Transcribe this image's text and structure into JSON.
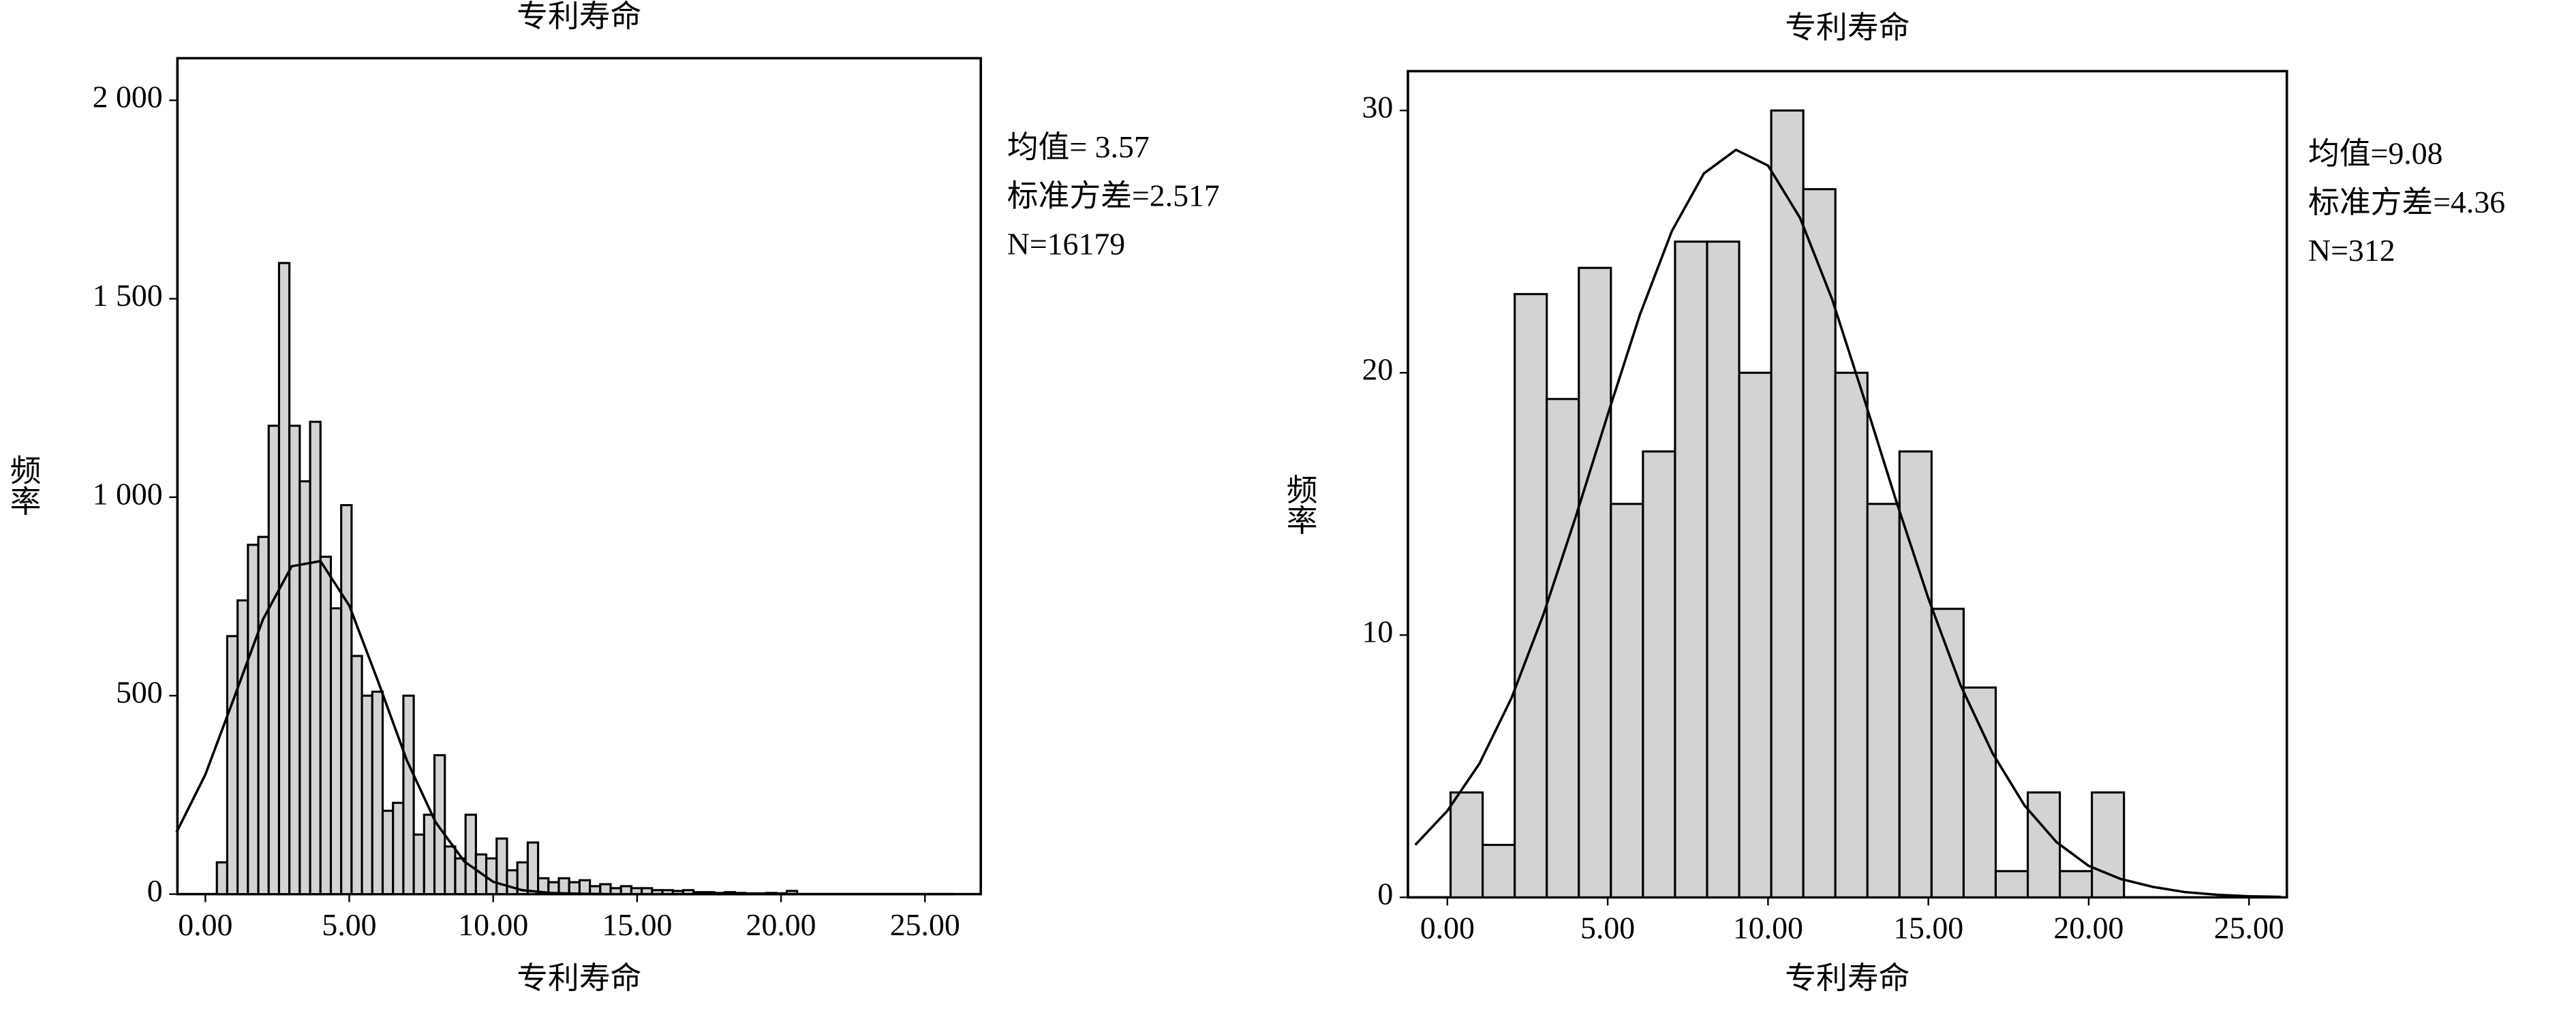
{
  "chart_data": [
    {
      "type": "histogram",
      "title": "专利寿命",
      "xlabel": "专利寿命",
      "ylabel": "频率",
      "annotations": [
        "均值= 3.57",
        "标准方差=2.517",
        "N=16179"
      ],
      "bins": [
        0.4,
        0.76,
        1.12,
        1.48,
        1.84,
        2.2,
        2.56,
        2.92,
        3.28,
        3.64,
        4.0,
        4.36,
        4.72,
        5.08,
        5.44,
        5.8,
        6.16,
        6.52,
        6.88,
        7.24,
        7.6,
        7.96,
        8.32,
        8.68,
        9.04,
        9.4,
        9.76,
        10.12,
        10.48,
        10.84,
        11.2,
        11.56,
        11.92,
        12.28,
        12.64,
        13.0,
        13.36,
        13.72,
        14.08,
        14.44,
        14.8,
        15.16,
        15.52,
        15.88,
        16.24,
        16.6,
        16.96,
        17.32,
        17.68,
        18.04,
        18.4,
        18.76,
        19.12,
        19.48,
        19.84,
        20.2,
        20.56
      ],
      "values": [
        80,
        650,
        740,
        880,
        900,
        1180,
        1590,
        1180,
        1040,
        1190,
        850,
        720,
        980,
        600,
        500,
        510,
        210,
        230,
        500,
        150,
        200,
        350,
        120,
        90,
        200,
        100,
        90,
        140,
        60,
        80,
        130,
        40,
        30,
        40,
        30,
        35,
        20,
        25,
        15,
        20,
        15,
        15,
        10,
        10,
        8,
        10,
        5,
        5,
        3,
        5,
        3,
        2,
        2,
        3,
        2,
        8
      ],
      "color": "#d3d3d3",
      "curve": {
        "x": [
          -1,
          0,
          1,
          2,
          3,
          4,
          5,
          6,
          7,
          8,
          9,
          10,
          11,
          12,
          13,
          14,
          15,
          16,
          17,
          18,
          19,
          20,
          21,
          22,
          23,
          24,
          25,
          26
        ],
        "y": [
          156,
          301,
          495,
          692,
          826,
          839,
          727,
          536,
          337,
          181,
          82,
          31,
          10,
          3,
          1,
          0,
          0,
          0,
          0,
          0,
          0,
          0,
          0,
          0,
          0,
          0,
          0,
          0
        ]
      },
      "curve_color": "#000000",
      "xlim": [
        -0.97,
        26.94
      ],
      "ylim": [
        0,
        2106
      ],
      "xticks": [
        {
          "value": 0,
          "label": "0.00"
        },
        {
          "value": 5,
          "label": "5.00"
        },
        {
          "value": 10,
          "label": "10.00"
        },
        {
          "value": 15,
          "label": "15.00"
        },
        {
          "value": 20,
          "label": "20.00"
        },
        {
          "value": 25,
          "label": "25.00"
        }
      ],
      "yticks": [
        0,
        500,
        {
          "value": 1000,
          "label": "1 000"
        },
        {
          "value": 1500,
          "label": "1 500"
        },
        {
          "value": 2000,
          "label": "2 000"
        }
      ]
    },
    {
      "type": "histogram",
      "title": "专利寿命",
      "xlabel": "专利寿命",
      "ylabel": "频率",
      "annotations": [
        "均值=9.08",
        "标准方差=4.36",
        "N=312"
      ],
      "bins": [
        0.1,
        1.1,
        2.1,
        3.1,
        4.1,
        5.1,
        6.1,
        7.1,
        8.1,
        9.1,
        10.1,
        11.1,
        12.1,
        13.1,
        14.1,
        15.1,
        16.1,
        17.1,
        18.1,
        19.1,
        20.1,
        21.1
      ],
      "values": [
        4,
        2,
        23,
        19,
        24,
        15,
        17,
        25,
        25,
        20,
        30,
        27,
        20,
        15,
        17,
        11,
        8,
        1,
        4,
        1,
        4
      ],
      "color": "#d3d3d3",
      "curve": {
        "x": [
          -1,
          0,
          1,
          2,
          3,
          4,
          5,
          6,
          7,
          8,
          9,
          10,
          11,
          12,
          13,
          14,
          15,
          16,
          17,
          18,
          19,
          20,
          21,
          22,
          23,
          24,
          25,
          26
        ],
        "y": [
          2.0,
          3.3,
          5.1,
          7.6,
          10.8,
          14.5,
          18.4,
          22.2,
          25.4,
          27.6,
          28.5,
          27.9,
          25.9,
          22.8,
          19.0,
          15.1,
          11.4,
          8.1,
          5.5,
          3.5,
          2.1,
          1.2,
          0.7,
          0.4,
          0.2,
          0.1,
          0.04,
          0.02
        ]
      },
      "curve_color": "#000000",
      "xlim": [
        -1.23,
        26.18
      ],
      "ylim": [
        0,
        31.5
      ],
      "xticks": [
        {
          "value": 0,
          "label": "0.00"
        },
        {
          "value": 5,
          "label": "5.00"
        },
        {
          "value": 10,
          "label": "10.00"
        },
        {
          "value": 15,
          "label": "15.00"
        },
        {
          "value": 20,
          "label": "20.00"
        },
        {
          "value": 25,
          "label": "25.00"
        }
      ],
      "yticks": [
        0,
        10,
        20,
        30
      ]
    }
  ]
}
